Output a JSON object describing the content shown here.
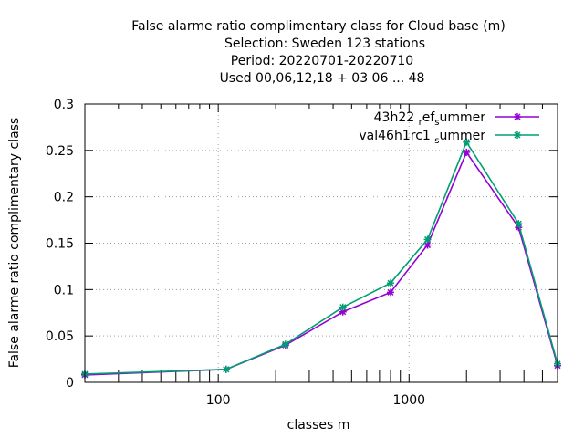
{
  "chart_data": {
    "type": "line",
    "title_lines": [
      "False alarme ratio complimentary class  for Cloud base (m)",
      "Selection: Sweden    123 stations",
      "Period: 20220701-20220710",
      "Used  00,06,12,18  + 03 06 ... 48"
    ],
    "xlabel": "classes m",
    "ylabel": "False alarme ratio complimentary class",
    "xscale": "log",
    "xlim": [
      20,
      6000
    ],
    "ylim": [
      0,
      0.3
    ],
    "xticks_labeled": [
      100,
      1000
    ],
    "xtick_labels": [
      "100",
      "1000"
    ],
    "yticks": [
      0,
      0.05,
      0.1,
      0.15,
      0.2,
      0.25,
      0.3
    ],
    "ytick_labels": [
      "0",
      "0.05",
      "0.1",
      "0.15",
      "0.2",
      "0.25",
      "0.3"
    ],
    "grid": true,
    "legend_position": "top-right",
    "series": [
      {
        "name_parts": [
          "43h22 ",
          "r",
          "ef",
          "s",
          "ummer"
        ],
        "color": "#9400d3",
        "x": [
          20,
          110,
          225,
          450,
          800,
          1250,
          2000,
          3750,
          6000
        ],
        "y": [
          0.008,
          0.014,
          0.04,
          0.076,
          0.097,
          0.148,
          0.248,
          0.167,
          0.018
        ]
      },
      {
        "name_parts": [
          "val46h1rc1 ",
          "s",
          "ummer"
        ],
        "color": "#009e73",
        "x": [
          20,
          110,
          225,
          450,
          800,
          1250,
          2000,
          3750,
          6000
        ],
        "y": [
          0.009,
          0.014,
          0.041,
          0.081,
          0.107,
          0.154,
          0.259,
          0.171,
          0.02
        ]
      }
    ]
  }
}
